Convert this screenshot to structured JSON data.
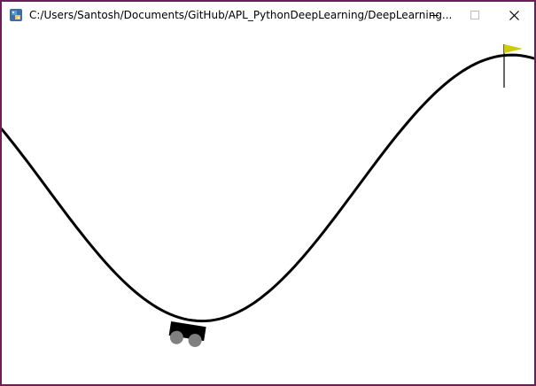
{
  "window": {
    "title": "C:/Users/Santosh/Documents/GitHub/APL_PythonDeepLearning/DeepLearning...",
    "border_color": "#6b1f57",
    "controls": {
      "minimize_icon": "minimize-icon",
      "maximize_icon": "maximize-icon",
      "close_icon": "close-icon"
    }
  },
  "game": {
    "environment": "mountain-car",
    "track_color": "#000000",
    "car_body_color": "#000000",
    "wheel_color": "#808080",
    "flag_color": "#cccc00",
    "flagpole_color": "#000000"
  }
}
